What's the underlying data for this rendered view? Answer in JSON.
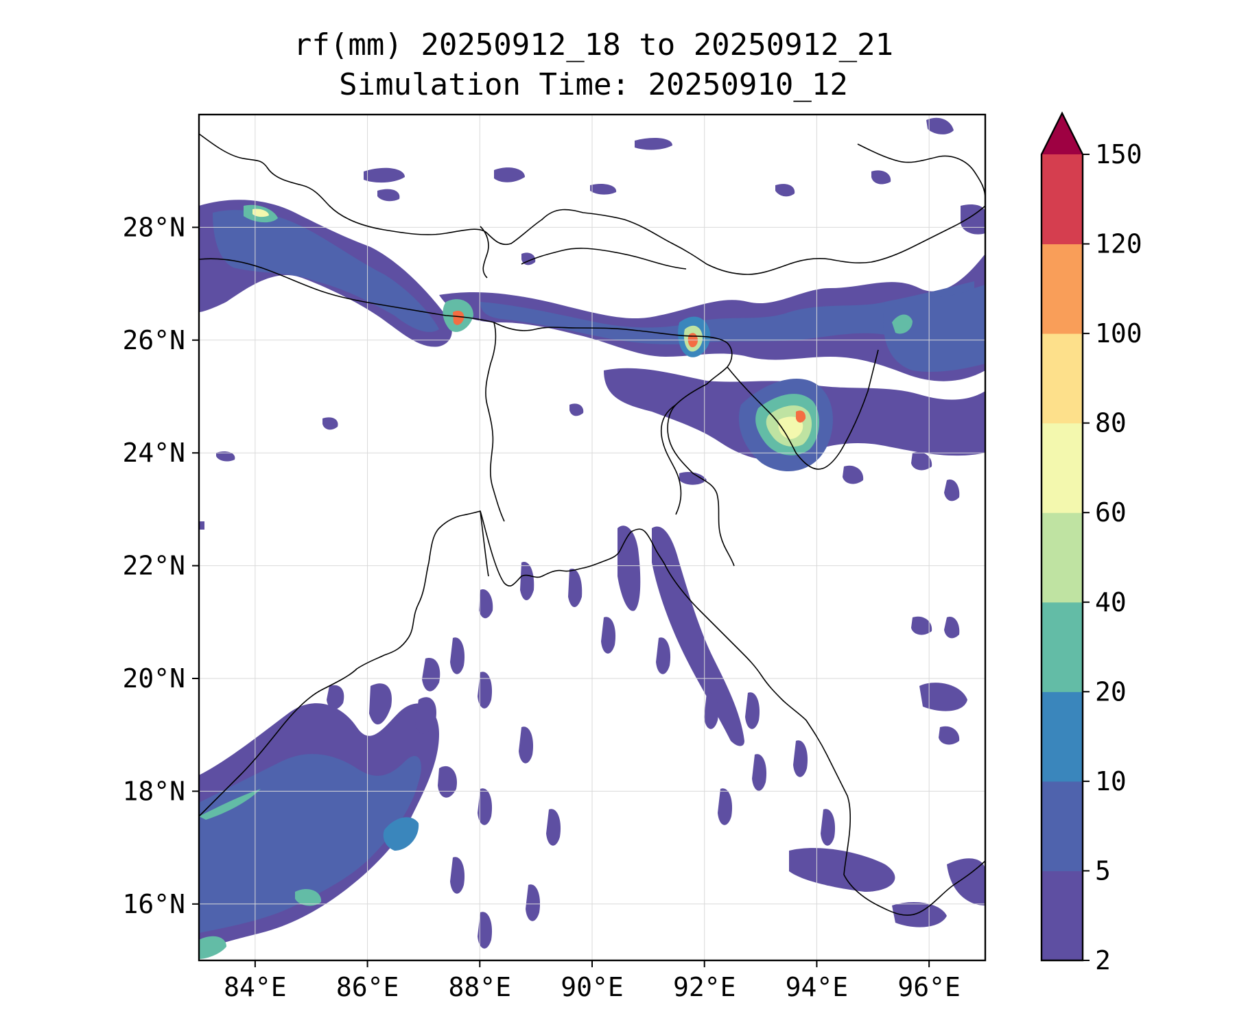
{
  "title": {
    "line1": "rf(mm) 20250912_18 to 20250912_21",
    "line2": "Simulation Time: 20250910_12"
  },
  "map": {
    "extent": {
      "lon": [
        83,
        97
      ],
      "lat": [
        15,
        30
      ]
    },
    "lon_ticks": [
      84,
      86,
      88,
      90,
      92,
      94,
      96
    ],
    "lat_ticks": [
      16,
      18,
      20,
      22,
      24,
      26,
      28
    ],
    "lon_labels": [
      "84°E",
      "86°E",
      "88°E",
      "90°E",
      "92°E",
      "94°E",
      "96°E"
    ],
    "lat_labels": [
      "16°N",
      "18°N",
      "20°N",
      "22°N",
      "24°N",
      "26°N",
      "28°N"
    ],
    "gridlines": true
  },
  "colorbar": {
    "labels": [
      "2",
      "5",
      "10",
      "20",
      "40",
      "60",
      "80",
      "100",
      "120",
      "150"
    ],
    "levels": [
      2,
      5,
      10,
      20,
      40,
      60,
      80,
      100,
      120,
      150
    ],
    "colors": [
      "#5e4fa2",
      "#4f63ad",
      "#3a86bc",
      "#63bca6",
      "#bfe3a2",
      "#f3f8ae",
      "#fde08b",
      "#f99e59",
      "#d53e4f"
    ],
    "extend_color": "#9e0142",
    "extend": "max"
  },
  "colors": {
    "heavy_core": "#f46d43",
    "coast": "#000000"
  }
}
